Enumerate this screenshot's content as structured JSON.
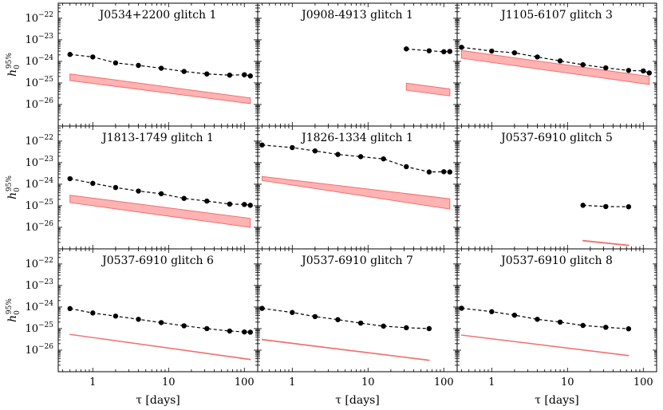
{
  "chart_data": [
    {
      "type": "line",
      "title": "J0534+2200 glitch 1",
      "xscale": "log",
      "yscale": "log",
      "xlim": [
        0.35,
        150
      ],
      "ylim": [
        1e-27,
        5e-22
      ],
      "upper_limit": {
        "x": [
          0.5,
          1,
          2,
          4,
          8,
          16,
          32,
          64,
          100,
          120
        ],
        "y": [
          2.1e-24,
          1.6e-24,
          8.5e-25,
          6.5e-25,
          4.8e-25,
          3.4e-25,
          2.6e-25,
          2.3e-25,
          2.4e-25,
          2.1e-25
        ]
      },
      "band": {
        "x": [
          0.5,
          120
        ],
        "lower": [
          1.3e-25,
          1.1e-26
        ],
        "upper": [
          2.6e-25,
          2e-26
        ]
      }
    },
    {
      "type": "line",
      "title": "J0908-4913 glitch 1",
      "xscale": "log",
      "yscale": "log",
      "xlim": [
        0.35,
        150
      ],
      "ylim": [
        1e-27,
        5e-22
      ],
      "upper_limit": {
        "x": [
          32,
          64,
          100,
          120
        ],
        "y": [
          3.8e-24,
          3.1e-24,
          2.8e-24,
          2.9e-24
        ]
      },
      "band": {
        "x": [
          32,
          120
        ],
        "lower": [
          4.6e-26,
          2.5e-26
        ],
        "upper": [
          9.8e-26,
          5.2e-26
        ]
      }
    },
    {
      "type": "line",
      "title": "J1105-6107 glitch 3",
      "xscale": "log",
      "yscale": "log",
      "xlim": [
        0.35,
        150
      ],
      "ylim": [
        1e-27,
        5e-22
      ],
      "upper_limit": {
        "x": [
          0.4,
          1,
          2,
          4,
          8,
          16,
          32,
          64,
          100,
          120
        ],
        "y": [
          4.5e-24,
          3e-24,
          2.5e-24,
          1.6e-24,
          1.05e-24,
          7e-25,
          5e-25,
          3.8e-25,
          3.6e-25,
          2.9e-25
        ]
      },
      "band": {
        "x": [
          0.4,
          120
        ],
        "lower": [
          1.4e-24,
          8.5e-26
        ],
        "upper": [
          3.2e-24,
          2e-25
        ]
      }
    },
    {
      "type": "line",
      "title": "J1813-1749 glitch 1",
      "xscale": "log",
      "yscale": "log",
      "xlim": [
        0.35,
        150
      ],
      "ylim": [
        1e-27,
        5e-22
      ],
      "upper_limit": {
        "x": [
          0.5,
          1,
          2,
          4,
          8,
          16,
          32,
          64,
          100,
          120
        ],
        "y": [
          1.8e-24,
          1.1e-24,
          7e-25,
          4.8e-25,
          3.6e-25,
          2.2e-25,
          1.65e-25,
          1.2e-25,
          1.15e-25,
          1.05e-25
        ]
      },
      "band": {
        "x": [
          0.5,
          120
        ],
        "lower": [
          1.4e-25,
          1e-26
        ],
        "upper": [
          3.1e-25,
          2.6e-26
        ]
      }
    },
    {
      "type": "line",
      "title": "J1826-1334 glitch 1",
      "xscale": "log",
      "yscale": "log",
      "xlim": [
        0.35,
        150
      ],
      "ylim": [
        1e-27,
        5e-22
      ],
      "upper_limit": {
        "x": [
          0.4,
          1,
          2,
          4,
          8,
          16,
          32,
          64,
          100,
          120
        ],
        "y": [
          6.6e-23,
          5e-23,
          3.5e-23,
          2.4e-23,
          1.9e-23,
          1.5e-23,
          6.5e-24,
          3.7e-24,
          3.8e-24,
          3.7e-24
        ]
      },
      "band": {
        "x": [
          0.4,
          120
        ],
        "lower": [
          1.5e-24,
          7e-26
        ],
        "upper": [
          2.3e-24,
          2.1e-25
        ]
      }
    },
    {
      "type": "line",
      "title": "J0537-6910 glitch 5",
      "xscale": "log",
      "yscale": "log",
      "xlim": [
        0.35,
        150
      ],
      "ylim": [
        1e-27,
        5e-22
      ],
      "upper_limit": {
        "x": [
          16,
          32,
          64
        ],
        "y": [
          1.05e-25,
          9.2e-26,
          9e-26
        ]
      },
      "band": {
        "x": [
          16,
          64
        ],
        "lower": [
          2.3e-27,
          1.4e-27
        ],
        "upper": [
          2.5e-27,
          1.5e-27
        ]
      }
    },
    {
      "type": "line",
      "title": "J0537-6910 glitch 6",
      "xscale": "log",
      "yscale": "log",
      "xlim": [
        0.35,
        150
      ],
      "ylim": [
        1e-27,
        5e-22
      ],
      "upper_limit": {
        "x": [
          0.5,
          1,
          2,
          4,
          8,
          16,
          32,
          64,
          100,
          120
        ],
        "y": [
          8.5e-25,
          5.3e-25,
          3.8e-25,
          2.7e-25,
          1.9e-25,
          1.35e-25,
          1e-25,
          7.7e-26,
          7e-26,
          6.8e-26
        ]
      },
      "band": {
        "x": [
          0.5,
          120
        ],
        "lower": [
          5.3e-26,
          3.6e-27
        ],
        "upper": [
          5.5e-26,
          3.8e-27
        ]
      }
    },
    {
      "type": "line",
      "title": "J0537-6910 glitch 7",
      "xscale": "log",
      "yscale": "log",
      "xlim": [
        0.35,
        150
      ],
      "ylim": [
        1e-27,
        5e-22
      ],
      "upper_limit": {
        "x": [
          0.4,
          1,
          2,
          4,
          8,
          16,
          32,
          64
        ],
        "y": [
          8.7e-25,
          5.6e-25,
          3.6e-25,
          2.6e-25,
          1.8e-25,
          1.3e-25,
          1.1e-25,
          1e-25
        ]
      },
      "band": {
        "x": [
          0.4,
          64
        ],
        "lower": [
          3e-26,
          3.3e-27
        ],
        "upper": [
          3.2e-26,
          3.5e-27
        ]
      }
    },
    {
      "type": "line",
      "title": "J0537-6910 glitch 8",
      "xscale": "log",
      "yscale": "log",
      "xlim": [
        0.35,
        150
      ],
      "ylim": [
        1e-27,
        5e-22
      ],
      "upper_limit": {
        "x": [
          0.4,
          1,
          2,
          4,
          8,
          16,
          32,
          64
        ],
        "y": [
          8.8e-25,
          6.1e-25,
          4.2e-25,
          2.7e-25,
          2e-25,
          1.4e-25,
          1.15e-25,
          9.8e-26
        ]
      },
      "band": {
        "x": [
          0.4,
          64
        ],
        "lower": [
          4.9e-26,
          5.5e-27
        ],
        "upper": [
          5.1e-26,
          5.8e-27
        ]
      }
    }
  ],
  "axes": {
    "xlabel": "τ [days]",
    "ylabel_base": "h",
    "ylabel_sub": "0",
    "ylabel_sup": "95%",
    "x_ticks": [
      {
        "value": 1,
        "label": "1"
      },
      {
        "value": 10,
        "label": "10"
      },
      {
        "value": 100,
        "label": "100"
      }
    ],
    "y_ticks": [
      {
        "value": 1e-26,
        "exp": "−26"
      },
      {
        "value": 1e-25,
        "exp": "−25"
      },
      {
        "value": 1e-24,
        "exp": "−24"
      },
      {
        "value": 1e-23,
        "exp": "−23"
      },
      {
        "value": 1e-22,
        "exp": "−22"
      }
    ],
    "y_tick_base": "10"
  },
  "colors": {
    "marker": "#000000",
    "band_fill": "#ffb3b3",
    "band_edge": "#f07070",
    "frame": "#000000"
  }
}
